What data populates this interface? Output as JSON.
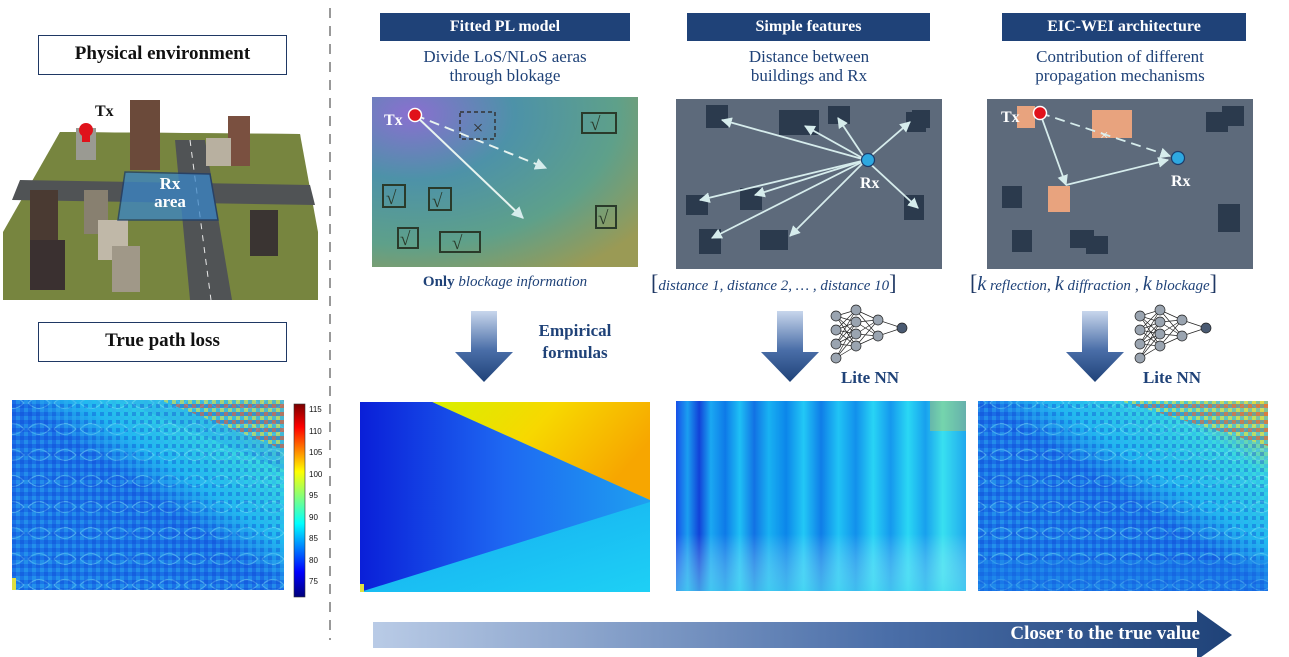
{
  "left": {
    "physical_env_label": "Physical environment",
    "tx_label": "Tx",
    "rx_area_label_1": "Rx",
    "rx_area_label_2": "area",
    "true_pl_label": "True path loss",
    "colorbar_ticks": [
      "115",
      "110",
      "105",
      "100",
      "95",
      "90",
      "85",
      "80",
      "75"
    ]
  },
  "methods": [
    {
      "header": "Fitted PL model",
      "subtitle_1": "Divide LoS/NLoS aeras",
      "subtitle_2": "through blokage",
      "tx": "Tx",
      "feature_bold": "Only",
      "feature_italic": "blockage information",
      "arrow_label_1": "Empirical",
      "arrow_label_2": "formulas"
    },
    {
      "header": "Simple features",
      "subtitle_1": "Distance between",
      "subtitle_2": "buildings and Rx",
      "rx": "Rx",
      "feature": "distance 1, distance 2, … , distance 10",
      "arrow_label": "Lite NN"
    },
    {
      "header": "EIC-WEI architecture",
      "subtitle_1": "Contribution of different",
      "subtitle_2": "propagation mechanisms",
      "tx": "Tx",
      "rx": "Rx",
      "k": "k",
      "f1": "reflection",
      "f2": "diffraction",
      "f3": "blockage",
      "arrow_label": "Lite NN"
    }
  ],
  "bottom_arrow_label": "Closer to the true value",
  "colors": {
    "navy": "#1f4278",
    "scene_bg": "#5d6a7b",
    "building": "#2b3a4d",
    "tx": "#e0121b",
    "rx": "#2ea8e0",
    "highlight": "#e8a37e"
  }
}
